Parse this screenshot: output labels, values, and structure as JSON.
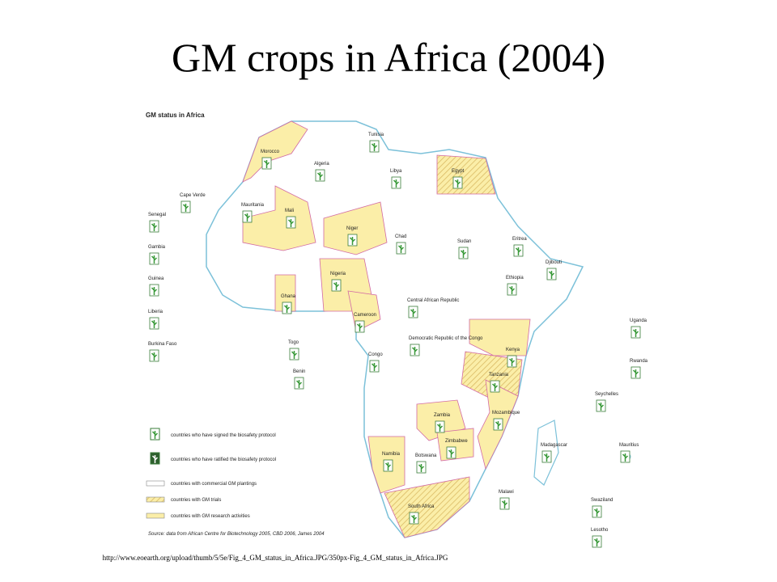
{
  "title": "GM crops in Africa (2004)",
  "map": {
    "title": "GM status in Africa",
    "countries": [
      "Tunisia",
      "Morocco",
      "Algeria",
      "Libya",
      "Egypt",
      "Cape Verde",
      "Senegal",
      "Mauritania",
      "Mali",
      "Niger",
      "Chad",
      "Sudan",
      "Eritrea",
      "Djibouti",
      "Gambia",
      "Guinea",
      "Liberia",
      "Burkina Faso",
      "Nigeria",
      "Ghana",
      "Ethiopia",
      "Central African Republic",
      "Cameroon",
      "Togo",
      "Benin",
      "Congo",
      "Democratic Republic of the Congo",
      "Uganda",
      "Kenya",
      "Rwanda",
      "Tanzania",
      "Seychelles",
      "Zambia",
      "Mozambique",
      "Zimbabwe",
      "Madagascar",
      "Mauritius",
      "Namibia",
      "Botswana",
      "Malawi",
      "Swaziland",
      "South Africa",
      "Lesotho"
    ],
    "legend": [
      "countries who have signed the biosafety protocol",
      "countries who have ratified the biosafety protocol",
      "countries with commercial GM plantings",
      "countries with GM trials",
      "countries with GM research activities"
    ],
    "source": "Source: data from African Centre for Biotechnology 2005, CBD 2006, James 2004"
  },
  "url": "http://www.eoearth.org/upload/thumb/5/5e/Fig_4_GM_status_in_Africa.JPG/350px-Fig_4_GM_status_in_Africa.JPG"
}
